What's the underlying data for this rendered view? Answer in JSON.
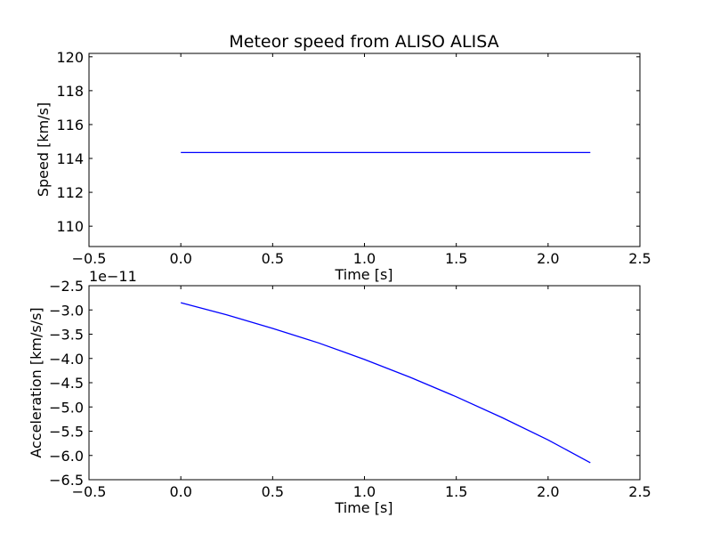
{
  "chart_data": [
    {
      "type": "line",
      "title": "Meteor speed from  ALISO ALISA",
      "xlabel": "Time [s]",
      "ylabel": "Speed [km/s]",
      "xlim": [
        -0.5,
        2.5
      ],
      "ylim": [
        108.8,
        120.2
      ],
      "xticks": [
        -0.5,
        0.0,
        0.5,
        1.0,
        1.5,
        2.0,
        2.5
      ],
      "xtick_labels": [
        "−0.5",
        "0.0",
        "0.5",
        "1.0",
        "1.5",
        "2.0",
        "2.5"
      ],
      "yticks": [
        110,
        112,
        114,
        116,
        118,
        120
      ],
      "ytick_labels": [
        "110",
        "112",
        "114",
        "116",
        "118",
        "120"
      ],
      "offset_text": "",
      "grid": false,
      "series": [
        {
          "color": "#0000ff",
          "x": [
            0.0,
            2.23
          ],
          "y": [
            114.35,
            114.35
          ]
        }
      ]
    },
    {
      "type": "line",
      "title": "",
      "xlabel": "Time [s]",
      "ylabel": "Acceleration [km/s/s]",
      "xlim": [
        -0.5,
        2.5
      ],
      "ylim": [
        -6.5,
        -2.5
      ],
      "xticks": [
        -0.5,
        0.0,
        0.5,
        1.0,
        1.5,
        2.0,
        2.5
      ],
      "xtick_labels": [
        "−0.5",
        "0.0",
        "0.5",
        "1.0",
        "1.5",
        "2.0",
        "2.5"
      ],
      "yticks": [
        -2.5,
        -3.0,
        -3.5,
        -4.0,
        -4.5,
        -5.0,
        -5.5,
        -6.0,
        -6.5
      ],
      "ytick_labels": [
        "−2.5",
        "−3.0",
        "−3.5",
        "−4.0",
        "−4.5",
        "−5.0",
        "−5.5",
        "−6.0",
        "−6.5"
      ],
      "offset_text": "1e−11",
      "grid": false,
      "series": [
        {
          "color": "#0000ff",
          "x": [
            0.0,
            0.25,
            0.5,
            0.75,
            1.0,
            1.25,
            1.5,
            1.75,
            2.0,
            2.23
          ],
          "y": [
            -2.85,
            -3.1,
            -3.38,
            -3.68,
            -4.02,
            -4.39,
            -4.79,
            -5.22,
            -5.68,
            -6.15
          ]
        }
      ]
    }
  ]
}
